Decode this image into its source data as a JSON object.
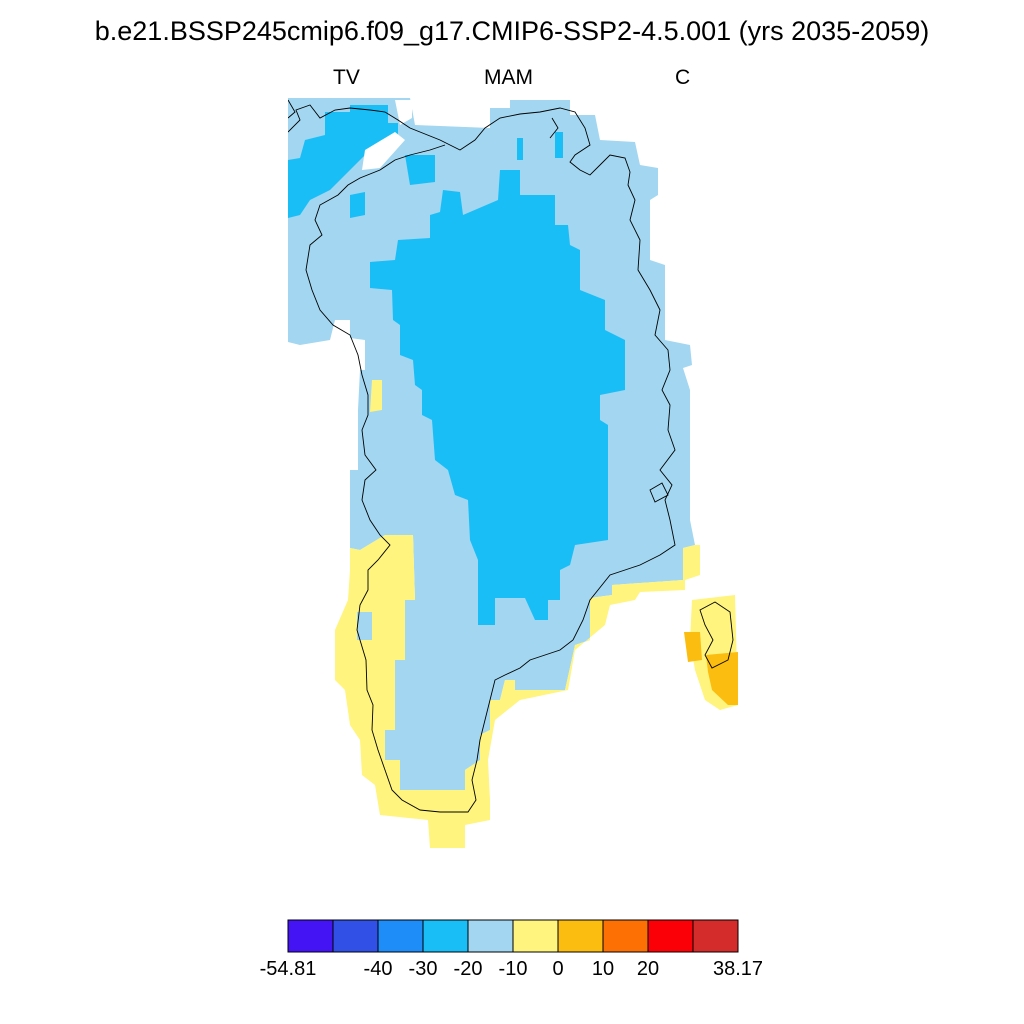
{
  "title": "b.e21.BSSP245cmip6.f09_g17.CMIP6-SSP2-4.5.001 (yrs 2035-2059)",
  "subtitles": {
    "left": "TV",
    "center": "MAM",
    "right": "C"
  },
  "map": {
    "region": "Greenland",
    "projection": "regional lat-lon",
    "coastlines": true
  },
  "colorbar": {
    "colors": [
      "#4514f5",
      "#3050e6",
      "#1f8df7",
      "#19bef7",
      "#a3d6f0",
      "#fff47d",
      "#fbbd0f",
      "#fc7004",
      "#fb0006",
      "#d42b2b"
    ],
    "labels": [
      "-54.81",
      "-40",
      "-30",
      "-20",
      "-10",
      "0",
      "10",
      "20",
      "38.17"
    ],
    "min": -54.81,
    "max": 38.17
  }
}
